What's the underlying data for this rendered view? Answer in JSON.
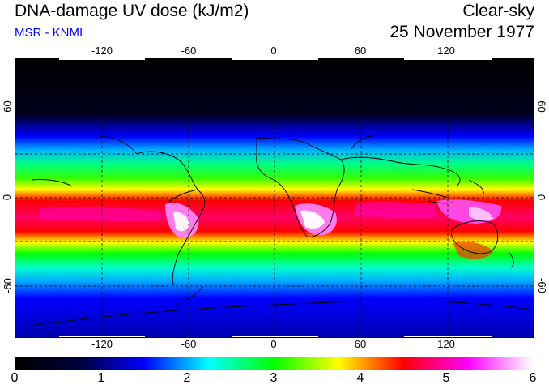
{
  "header": {
    "title": "DNA-damage UV dose (kJ/m2)",
    "subtitle": "MSR - KNMI",
    "condition": "Clear-sky",
    "date": "25 November 1977"
  },
  "map": {
    "lon_ticks": [
      "-120",
      "-60",
      "0",
      "60",
      "120"
    ],
    "lat_ticks_left": [
      "60",
      "0",
      "-60"
    ],
    "lat_ticks_right": [
      "60",
      "0",
      "-60"
    ]
  },
  "colorbar": {
    "ticks": [
      "0",
      "1",
      "2",
      "3",
      "4",
      "5",
      "6"
    ],
    "min": 0,
    "max": 6,
    "colors": [
      "#000000",
      "#00003a",
      "#0000ff",
      "#00ffff",
      "#00ff00",
      "#ffff00",
      "#ff0000",
      "#ff00ff",
      "#ffffff"
    ]
  }
}
